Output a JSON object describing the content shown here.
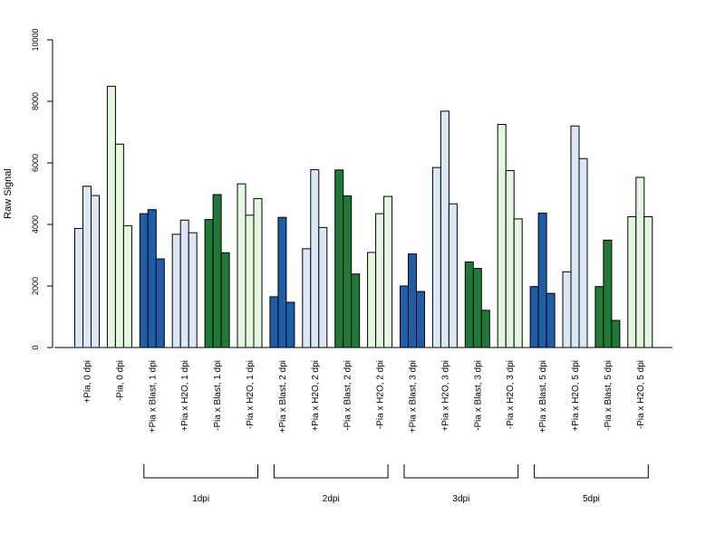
{
  "chart_data": {
    "type": "bar",
    "title": "",
    "xlabel": "",
    "ylabel": "Raw Signal",
    "ylim": [
      0,
      10000
    ],
    "yticks": [
      0,
      2000,
      4000,
      6000,
      8000,
      10000
    ],
    "grid": false,
    "bars_per_category": 3,
    "categories": [
      {
        "label": "+Pia, 0 dpi",
        "values": [
          3870,
          5240,
          4940
        ],
        "color": "#dbe7f5"
      },
      {
        "label": "-Pia, 0 dpi",
        "values": [
          8490,
          6610,
          3960
        ],
        "color": "#e4f7df"
      },
      {
        "label": "+Pia x Blast, 1 dpi",
        "values": [
          4350,
          4480,
          2880
        ],
        "color": "#1c5fa8"
      },
      {
        "label": "+Pia x H2O, 1 dpi",
        "values": [
          3680,
          4140,
          3730
        ],
        "color": "#dbe7f5"
      },
      {
        "label": "-Pia x Blast, 1 dpi",
        "values": [
          4160,
          4970,
          3080
        ],
        "color": "#1f7a38"
      },
      {
        "label": "-Pia x H2O, 1 dpi",
        "values": [
          5320,
          4300,
          4840
        ],
        "color": "#e4f7df"
      },
      {
        "label": "+Pia x Blast, 2 dpi",
        "values": [
          1650,
          4230,
          1470
        ],
        "color": "#1c5fa8"
      },
      {
        "label": "+Pia x H2O, 2 dpi",
        "values": [
          3210,
          5780,
          3900
        ],
        "color": "#dbe7f5"
      },
      {
        "label": "-Pia x Blast, 2 dpi",
        "values": [
          5770,
          4930,
          2390
        ],
        "color": "#1f7a38"
      },
      {
        "label": "-Pia x H2O, 2 dpi",
        "values": [
          3090,
          4350,
          4910
        ],
        "color": "#e4f7df"
      },
      {
        "label": "+Pia x Blast, 3 dpi",
        "values": [
          2000,
          3040,
          1820
        ],
        "color": "#1c5fa8"
      },
      {
        "label": "+Pia x H2O, 3 dpi",
        "values": [
          5850,
          7680,
          4670
        ],
        "color": "#dbe7f5"
      },
      {
        "label": "-Pia x Blast, 3 dpi",
        "values": [
          2780,
          2570,
          1210
        ],
        "color": "#1f7a38"
      },
      {
        "label": "-Pia x H2O, 3 dpi",
        "values": [
          7250,
          5750,
          4180
        ],
        "color": "#e4f7df"
      },
      {
        "label": "+Pia x Blast, 5 dpi",
        "values": [
          1980,
          4370,
          1760
        ],
        "color": "#1c5fa8"
      },
      {
        "label": "+Pia x H2O, 5 dpi",
        "values": [
          2460,
          7200,
          6140
        ],
        "color": "#dbe7f5"
      },
      {
        "label": "-Pia x Blast, 5 dpi",
        "values": [
          1980,
          3490,
          880
        ],
        "color": "#1f7a38"
      },
      {
        "label": "-Pia x H2O, 5 dpi",
        "values": [
          4250,
          5530,
          4250
        ],
        "color": "#e4f7df"
      }
    ],
    "groups": [
      {
        "label": "1dpi",
        "from": 2,
        "to": 5
      },
      {
        "label": "2dpi",
        "from": 6,
        "to": 9
      },
      {
        "label": "3dpi",
        "from": 10,
        "to": 13
      },
      {
        "label": "5dpi",
        "from": 14,
        "to": 17
      }
    ]
  }
}
